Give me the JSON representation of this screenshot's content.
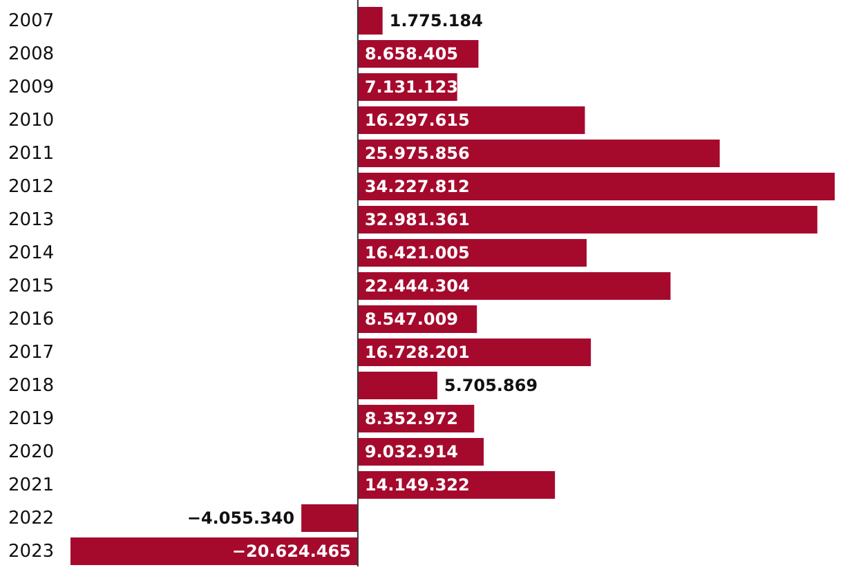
{
  "chart_data": {
    "type": "bar",
    "orientation": "horizontal",
    "categories": [
      "2007",
      "2008",
      "2009",
      "2010",
      "2011",
      "2012",
      "2013",
      "2014",
      "2015",
      "2016",
      "2017",
      "2018",
      "2019",
      "2020",
      "2021",
      "2022",
      "2023"
    ],
    "values": [
      1775184,
      8658405,
      7131123,
      16297615,
      25975856,
      34227812,
      32981361,
      16421005,
      22444304,
      8547009,
      16728201,
      5705869,
      8352972,
      9032914,
      14149322,
      -4055340,
      -20624465
    ],
    "labels": [
      "1.775.184",
      "8.658.405",
      "7.131.123",
      "16.297.615",
      "25.975.856",
      "34.227.812",
      "32.981.361",
      "16.421.005",
      "22.444.304",
      "8.547.009",
      "16.728.201",
      "5.705.869",
      "8.352.972",
      "9.032.914",
      "14.149.322",
      "−4.055.340",
      "−20.624.465"
    ],
    "title": "",
    "xlabel": "",
    "ylabel": "",
    "xlim": [
      -20624465,
      34227812
    ],
    "grid": false,
    "colors": {
      "bar": "#a50a2d",
      "axis": "#333333",
      "label_inside": "#ffffff",
      "label_outside": "#111111"
    }
  }
}
